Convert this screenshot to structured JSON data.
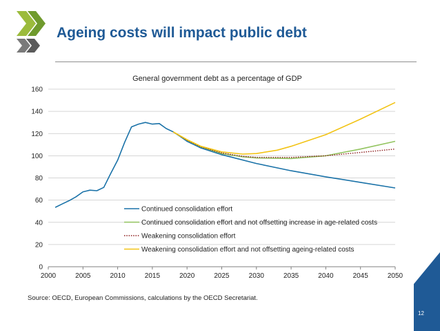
{
  "slide": {
    "title": "Ageing costs will impact public debt",
    "source": "Source: OECD, European Commissions, calculations by the OECD Secretariat.",
    "page_number": "12",
    "accent_color": "#1f5a96",
    "logo_color": "#9bbb3c",
    "logo_icon": "oecd-logo-icon"
  },
  "chart_data": {
    "type": "line",
    "title": "General government debt as a percentage of GDP",
    "xlabel": "",
    "ylabel": "",
    "xlim": [
      2000,
      2050
    ],
    "ylim": [
      0,
      160
    ],
    "x_ticks": [
      "2000",
      "2005",
      "2010",
      "2015",
      "2020",
      "2025",
      "2030",
      "2035",
      "2040",
      "2045",
      "2050"
    ],
    "y_ticks": [
      "0",
      "20",
      "40",
      "60",
      "80",
      "100",
      "120",
      "140",
      "160"
    ],
    "grid": true,
    "legend_position": "center",
    "series": [
      {
        "name": "Continued consolidation effort",
        "color": "#1a72a8",
        "dash": "solid",
        "points": [
          [
            2001,
            53.5
          ],
          [
            2002,
            56.5
          ],
          [
            2003,
            59.5
          ],
          [
            2004,
            63
          ],
          [
            2005,
            67.5
          ],
          [
            2006,
            69
          ],
          [
            2007,
            68.5
          ],
          [
            2008,
            71.5
          ],
          [
            2009,
            84
          ],
          [
            2010,
            96
          ],
          [
            2011,
            112
          ],
          [
            2012,
            126
          ],
          [
            2013,
            128.5
          ],
          [
            2014,
            130
          ],
          [
            2015,
            128.5
          ],
          [
            2016,
            129
          ],
          [
            2017,
            124.5
          ],
          [
            2018,
            121.5
          ],
          [
            2019,
            117.5
          ],
          [
            2020,
            113
          ],
          [
            2021,
            110
          ],
          [
            2022,
            107
          ],
          [
            2023,
            105
          ],
          [
            2024,
            103
          ],
          [
            2025,
            101
          ],
          [
            2030,
            93
          ],
          [
            2035,
            86.5
          ],
          [
            2040,
            81
          ],
          [
            2045,
            76
          ],
          [
            2050,
            71
          ]
        ]
      },
      {
        "name": "Continued consolidation effort and not offsetting increase in age-related costs",
        "color": "#92c45f",
        "dash": "solid",
        "points": [
          [
            2018,
            121.5
          ],
          [
            2020,
            114
          ],
          [
            2022,
            108
          ],
          [
            2025,
            102
          ],
          [
            2028,
            99
          ],
          [
            2030,
            98
          ],
          [
            2035,
            97.5
          ],
          [
            2040,
            100
          ],
          [
            2045,
            106
          ],
          [
            2050,
            113
          ]
        ]
      },
      {
        "name": "Weakening consolidation effort",
        "color": "#8b1a1a",
        "dash": "dotted",
        "points": [
          [
            2018,
            121.5
          ],
          [
            2020,
            114
          ],
          [
            2022,
            108
          ],
          [
            2025,
            102.5
          ],
          [
            2028,
            99.5
          ],
          [
            2030,
            98.5
          ],
          [
            2035,
            98.5
          ],
          [
            2040,
            100
          ],
          [
            2045,
            103
          ],
          [
            2050,
            106
          ]
        ]
      },
      {
        "name": "Weakening consolidation effort and not offsetting ageing-related costs",
        "color": "#f2c314",
        "dash": "solid",
        "points": [
          [
            2018,
            121.5
          ],
          [
            2020,
            114.5
          ],
          [
            2022,
            108.5
          ],
          [
            2025,
            103.5
          ],
          [
            2028,
            101.5
          ],
          [
            2030,
            102
          ],
          [
            2033,
            105
          ],
          [
            2035,
            108.5
          ],
          [
            2040,
            119
          ],
          [
            2045,
            133
          ],
          [
            2050,
            148
          ]
        ]
      }
    ]
  }
}
